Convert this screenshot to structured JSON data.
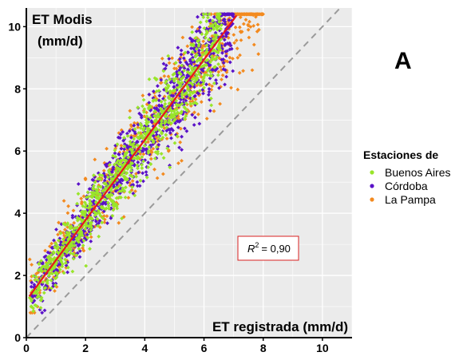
{
  "chart_data": {
    "type": "scatter",
    "panel_label": "A",
    "xlabel": "ET registrada (mm/d)",
    "ylabel_line1": "ET Modis",
    "ylabel_line2": "(mm/d)",
    "xlim": [
      0,
      11
    ],
    "ylim": [
      0,
      10.6
    ],
    "x_ticks": [
      0,
      2,
      4,
      6,
      8,
      10
    ],
    "y_ticks": [
      0,
      2,
      4,
      6,
      8,
      10
    ],
    "grid": true,
    "legend": {
      "title": "Estaciones de",
      "placement": "right",
      "entries": [
        "Buenos Aires",
        "Córdoba",
        "La Pampa"
      ]
    },
    "series": [
      {
        "name": "Buenos Aires",
        "color": "#99e52a",
        "points_approx": 900
      },
      {
        "name": "Córdoba",
        "color": "#5a12c8",
        "points_approx": 900
      },
      {
        "name": "La Pampa",
        "color": "#f38a1f",
        "points_approx": 700
      }
    ],
    "regression_line": {
      "color": "#e8151b",
      "x_range": [
        0.1,
        7.1
      ],
      "slope": 1.29,
      "intercept": 1.2
    },
    "identity_line": {
      "color": "#9a9a9a",
      "style": "dashed"
    },
    "annotation": {
      "r2_label": "R",
      "r2_sup": "2",
      "r2_value": "= 0,90"
    }
  }
}
